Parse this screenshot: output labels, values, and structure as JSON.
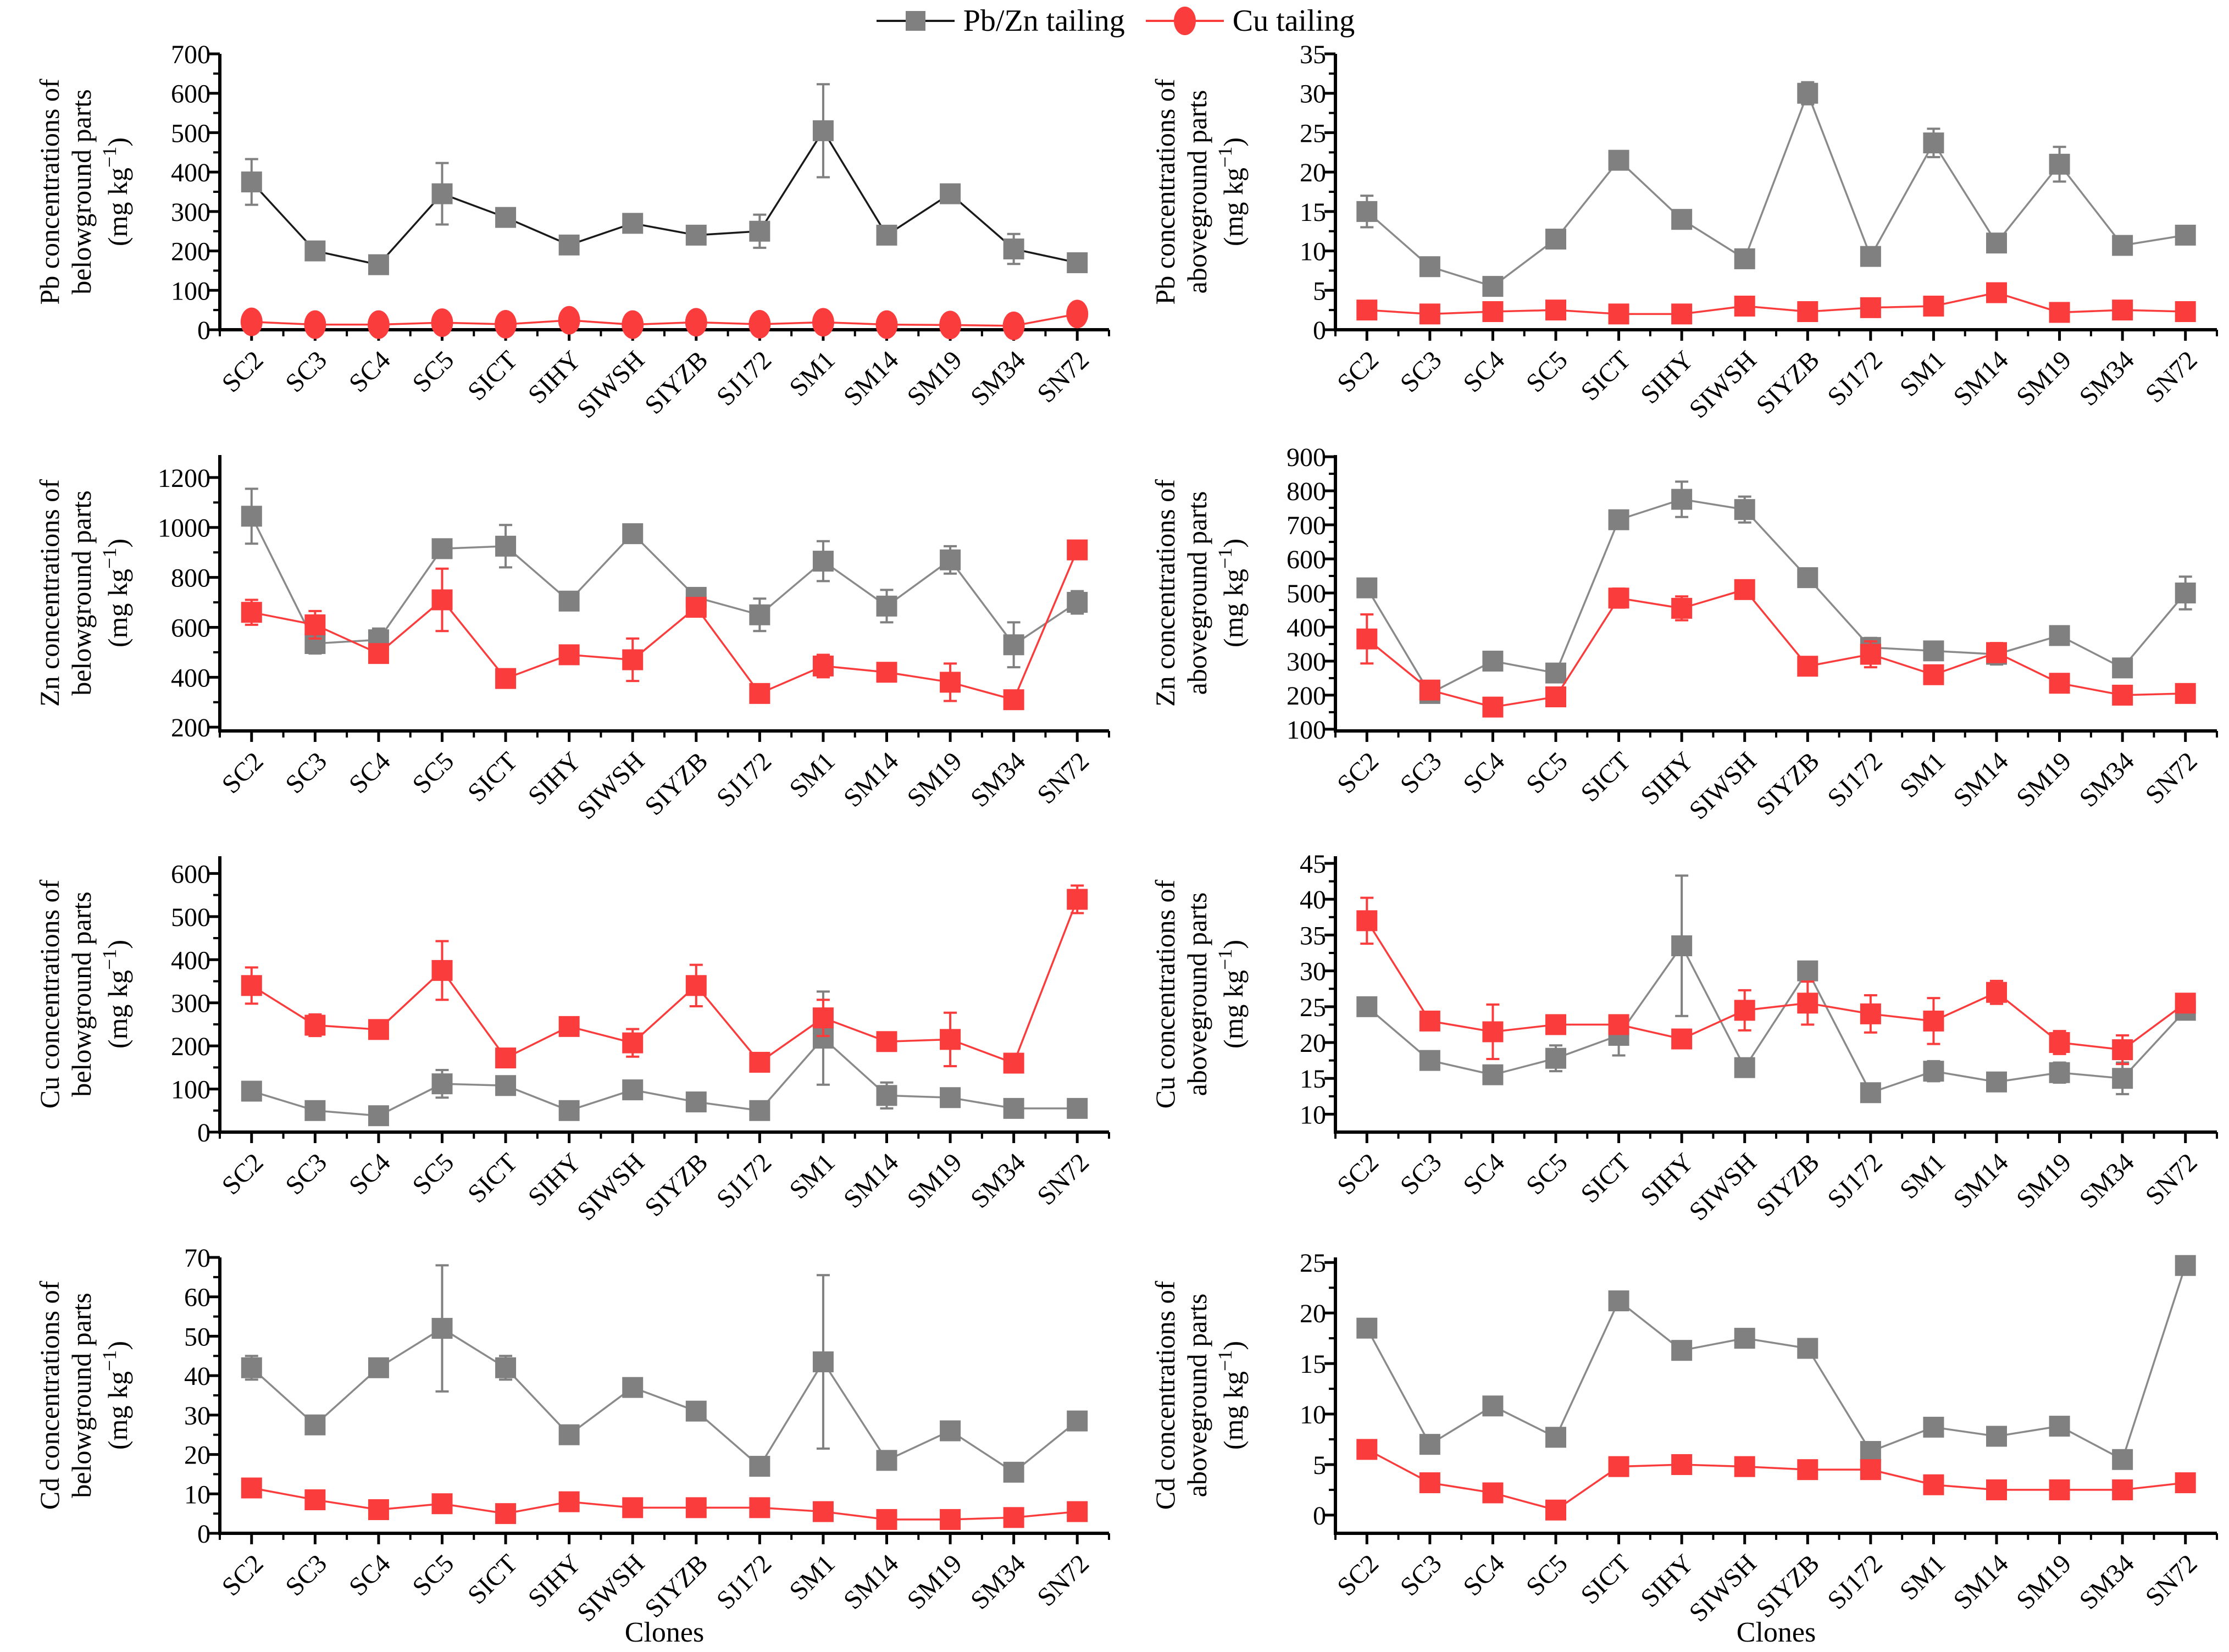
{
  "xlabel": "Clones",
  "categories": [
    "SC2",
    "SC3",
    "SC4",
    "SC5",
    "SICT",
    "SIHY",
    "SIWSH",
    "SIYZB",
    "SJ172",
    "SM1",
    "SM14",
    "SM19",
    "SM34",
    "SN72"
  ],
  "legend": {
    "items": [
      {
        "label": "Pb/Zn tailing",
        "marker": "square",
        "marker_color": "#808080",
        "line_color": "#1a1a1a"
      },
      {
        "label": "Cu tailing",
        "marker": "circle",
        "marker_color": "#fa3c3c",
        "line_color": "#fa3c3c"
      }
    ]
  },
  "chart_data": [
    {
      "type": "line",
      "name": "pb-belowground",
      "ylabel_line1": "Pb concentrations of",
      "ylabel_line2": "belowground parts",
      "ylabel_unit": "(mg kg⁻¹)",
      "ylim": [
        0,
        700
      ],
      "yticks": {
        "min": 0,
        "max": 700,
        "step": 100
      },
      "show_xlabel": false,
      "series": [
        {
          "key": "pbzn",
          "name": "Pb/Zn tailing",
          "marker": "square",
          "color": "#808080",
          "line_color": "#1a1a1a",
          "values": [
            375,
            200,
            165,
            345,
            285,
            215,
            270,
            240,
            250,
            505,
            240,
            345,
            205,
            170
          ],
          "errors": [
            58,
            8,
            12,
            78,
            22,
            8,
            10,
            8,
            42,
            118,
            8,
            15,
            38,
            8
          ]
        },
        {
          "key": "cu",
          "name": "Cu tailing",
          "marker": "circle",
          "color": "#fa3c3c",
          "line_color": "#fa3c3c",
          "values": [
            20,
            13,
            13,
            18,
            14,
            24,
            13,
            19,
            14,
            19,
            13,
            12,
            10,
            40
          ],
          "errors": [
            6,
            4,
            4,
            5,
            4,
            6,
            4,
            5,
            4,
            5,
            4,
            4,
            3,
            8
          ]
        }
      ]
    },
    {
      "type": "line",
      "name": "pb-aboveground",
      "ylabel_line1": "Pb concentrations of",
      "ylabel_line2": "aboveground parts",
      "ylabel_unit": "(mg kg⁻¹)",
      "ylim": [
        0,
        35
      ],
      "yticks": {
        "min": 0,
        "max": 35,
        "step": 5
      },
      "show_xlabel": false,
      "series": [
        {
          "key": "pbzn",
          "name": "Pb/Zn tailing",
          "marker": "square",
          "color": "#808080",
          "line_color": "#8a8a8a",
          "values": [
            15,
            8,
            5.5,
            11.5,
            21.5,
            14,
            9,
            30,
            9.3,
            23.7,
            11,
            21,
            10.7,
            12
          ],
          "errors": [
            2,
            0.4,
            0.5,
            0.4,
            0.9,
            0.4,
            0.4,
            1.4,
            0.4,
            1.8,
            0.4,
            2.2,
            0.5,
            0.5
          ]
        },
        {
          "key": "cu",
          "name": "Cu tailing",
          "marker": "square",
          "color": "#fa3c3c",
          "line_color": "#fa3c3c",
          "values": [
            2.5,
            2,
            2.3,
            2.5,
            2,
            2,
            3,
            2.3,
            2.8,
            3,
            4.7,
            2.2,
            2.5,
            2.3
          ],
          "errors": [
            0.3,
            0.3,
            0.3,
            0.3,
            0.3,
            0.3,
            0.3,
            0.3,
            0.3,
            0.3,
            0.4,
            0.3,
            0.3,
            0.3
          ]
        }
      ]
    },
    {
      "type": "line",
      "name": "zn-belowground",
      "ylabel_line1": "Zn concentrations of",
      "ylabel_line2": "belowground parts",
      "ylabel_unit": "(mg kg⁻¹)",
      "ylim": [
        185,
        1290
      ],
      "yticks": {
        "min": 200,
        "max": 1200,
        "step": 200
      },
      "show_xlabel": false,
      "series": [
        {
          "key": "pbzn",
          "name": "Pb/Zn tailing",
          "marker": "square",
          "color": "#808080",
          "line_color": "#8a8a8a",
          "values": [
            1045,
            535,
            550,
            915,
            925,
            705,
            975,
            720,
            650,
            865,
            685,
            870,
            530,
            700
          ],
          "errors": [
            110,
            40,
            45,
            25,
            85,
            25,
            20,
            30,
            65,
            80,
            65,
            55,
            90,
            45
          ]
        },
        {
          "key": "cu",
          "name": "Cu tailing",
          "marker": "square",
          "color": "#fa3c3c",
          "line_color": "#fa3c3c",
          "values": [
            660,
            610,
            495,
            710,
            395,
            490,
            470,
            680,
            335,
            445,
            420,
            380,
            310,
            910
          ],
          "errors": [
            50,
            55,
            30,
            125,
            15,
            20,
            85,
            25,
            15,
            45,
            20,
            75,
            20,
            25
          ]
        }
      ]
    },
    {
      "type": "line",
      "name": "zn-aboveground",
      "ylabel_line1": "Zn concentrations of",
      "ylabel_line2": "aboveground parts",
      "ylabel_unit": "(mg kg⁻¹)",
      "ylim": [
        95,
        905
      ],
      "yticks": {
        "min": 100,
        "max": 900,
        "step": 100
      },
      "show_xlabel": false,
      "series": [
        {
          "key": "pbzn",
          "name": "Pb/Zn tailing",
          "marker": "square",
          "color": "#808080",
          "line_color": "#8a8a8a",
          "values": [
            515,
            205,
            300,
            265,
            715,
            775,
            745,
            545,
            340,
            330,
            320,
            375,
            280,
            500
          ],
          "errors": [
            20,
            12,
            12,
            15,
            20,
            52,
            38,
            18,
            28,
            12,
            30,
            12,
            12,
            48
          ]
        },
        {
          "key": "cu",
          "name": "Cu tailing",
          "marker": "square",
          "color": "#fa3c3c",
          "line_color": "#fa3c3c",
          "values": [
            365,
            215,
            165,
            195,
            485,
            455,
            510,
            285,
            320,
            260,
            325,
            235,
            200,
            205
          ],
          "errors": [
            72,
            12,
            10,
            10,
            28,
            35,
            15,
            12,
            38,
            15,
            28,
            12,
            10,
            10
          ]
        }
      ]
    },
    {
      "type": "line",
      "name": "cu-belowground",
      "ylabel_line1": "Cu concentrations of",
      "ylabel_line2": "belowground parts",
      "ylabel_unit": "(mg kg⁻¹)",
      "ylim": [
        0,
        640
      ],
      "yticks": {
        "min": 0,
        "max": 600,
        "step": 100
      },
      "show_xlabel": false,
      "series": [
        {
          "key": "pbzn",
          "name": "Pb/Zn tailing",
          "marker": "square",
          "color": "#808080",
          "line_color": "#8a8a8a",
          "values": [
            95,
            50,
            38,
            112,
            108,
            50,
            98,
            70,
            50,
            218,
            85,
            80,
            55,
            55
          ],
          "errors": [
            12,
            8,
            8,
            32,
            10,
            8,
            10,
            8,
            8,
            108,
            30,
            10,
            8,
            8
          ]
        },
        {
          "key": "cu",
          "name": "Cu tailing",
          "marker": "square",
          "color": "#fa3c3c",
          "line_color": "#fa3c3c",
          "values": [
            340,
            248,
            238,
            375,
            172,
            245,
            207,
            340,
            162,
            265,
            210,
            215,
            160,
            540
          ],
          "errors": [
            42,
            25,
            15,
            68,
            12,
            12,
            32,
            48,
            10,
            42,
            12,
            62,
            14,
            32
          ]
        }
      ]
    },
    {
      "type": "line",
      "name": "cu-aboveground",
      "ylabel_line1": "Cu concentrations of",
      "ylabel_line2": "aboveground parts",
      "ylabel_unit": "(mg kg⁻¹)",
      "ylim": [
        7.5,
        46
      ],
      "yticks": {
        "min": 10,
        "max": 45,
        "step": 5
      },
      "show_xlabel": false,
      "series": [
        {
          "key": "pbzn",
          "name": "Pb/Zn tailing",
          "marker": "square",
          "color": "#808080",
          "line_color": "#8a8a8a",
          "values": [
            25,
            17.5,
            15.5,
            17.8,
            21,
            33.5,
            16.5,
            30,
            13,
            16,
            14.5,
            15.8,
            15,
            24.5
          ],
          "errors": [
            1,
            0.6,
            0.6,
            1.8,
            2.8,
            9.8,
            0.6,
            1,
            0.6,
            1.4,
            0.6,
            1.4,
            2.2,
            0.6
          ]
        },
        {
          "key": "cu",
          "name": "Cu tailing",
          "marker": "square",
          "color": "#fa3c3c",
          "line_color": "#fa3c3c",
          "values": [
            37,
            23,
            21.5,
            22.5,
            22.5,
            20.5,
            24.5,
            25.5,
            24,
            23,
            27,
            20,
            19,
            25.5
          ],
          "errors": [
            3.2,
            1,
            3.8,
            1,
            1.2,
            1.2,
            2.8,
            3,
            2.6,
            3.2,
            1.6,
            1.6,
            2,
            1
          ]
        }
      ]
    },
    {
      "type": "line",
      "name": "cd-belowground",
      "ylabel_line1": "Cd concentrations of",
      "ylabel_line2": "belowground parts",
      "ylabel_unit": "(mg kg⁻¹)",
      "ylim": [
        0,
        70
      ],
      "yticks": {
        "min": 0,
        "max": 70,
        "step": 10
      },
      "show_xlabel": true,
      "series": [
        {
          "key": "pbzn",
          "name": "Pb/Zn tailing",
          "marker": "square",
          "color": "#808080",
          "line_color": "#8a8a8a",
          "values": [
            42,
            27.5,
            42,
            52,
            42,
            25,
            37,
            31,
            17,
            43.5,
            18.5,
            26,
            15.5,
            28.5
          ],
          "errors": [
            3,
            1.5,
            1.5,
            16,
            3,
            1.5,
            1.5,
            1.5,
            1.5,
            22,
            1.5,
            1.5,
            1.5,
            1.5
          ]
        },
        {
          "key": "cu",
          "name": "Cu tailing",
          "marker": "square",
          "color": "#fa3c3c",
          "line_color": "#fa3c3c",
          "values": [
            11.5,
            8.5,
            6,
            7.5,
            5,
            8,
            6.5,
            6.5,
            6.5,
            5.5,
            3.5,
            3.5,
            4,
            5.5
          ],
          "errors": [
            1,
            1,
            1,
            1,
            1,
            1,
            1,
            1,
            1,
            1,
            1,
            1,
            1,
            1
          ]
        }
      ]
    },
    {
      "type": "line",
      "name": "cd-aboveground",
      "ylabel_line1": "Cd concentrations of",
      "ylabel_line2": "aboveground parts",
      "ylabel_unit": "(mg kg⁻¹)",
      "ylim": [
        -1.8,
        25.5
      ],
      "yticks": {
        "min": 0,
        "max": 25,
        "step": 5
      },
      "show_xlabel": true,
      "series": [
        {
          "key": "pbzn",
          "name": "Pb/Zn tailing",
          "marker": "square",
          "color": "#808080",
          "line_color": "#8a8a8a",
          "values": [
            18.5,
            7,
            10.8,
            7.7,
            21.2,
            16.3,
            17.5,
            16.5,
            6.3,
            8.7,
            7.8,
            8.8,
            5.5,
            24.7
          ],
          "errors": [
            0.3,
            0.3,
            0.3,
            0.3,
            0.3,
            0.3,
            0.3,
            0.3,
            0.3,
            0.3,
            0.3,
            0.3,
            0.3,
            0.3
          ]
        },
        {
          "key": "cu",
          "name": "Cu tailing",
          "marker": "square",
          "color": "#fa3c3c",
          "line_color": "#fa3c3c",
          "values": [
            6.5,
            3.2,
            2.2,
            0.5,
            4.8,
            5,
            4.8,
            4.5,
            4.5,
            3,
            2.5,
            2.5,
            2.5,
            3.2
          ],
          "errors": [
            0.3,
            0.3,
            0.3,
            0.3,
            0.3,
            0.3,
            0.3,
            0.3,
            0.3,
            0.3,
            0.3,
            0.3,
            0.3,
            0.3
          ]
        }
      ]
    }
  ]
}
